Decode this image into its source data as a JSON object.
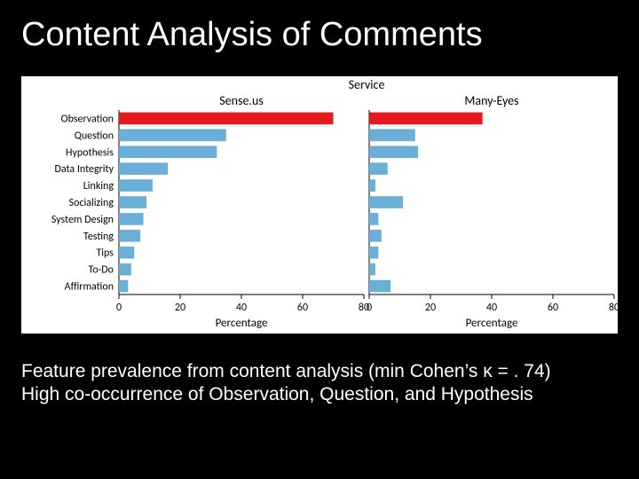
{
  "title": "Content Analysis of Comments",
  "chart": {
    "background_color": "#ffffff",
    "super_label": "Service",
    "panels_label_fontsize": 14,
    "categories": [
      "Observation",
      "Question",
      "Hypothesis",
      "Data Integrity",
      "Linking",
      "Socializing",
      "System Design",
      "Testing",
      "Tips",
      "To-Do",
      "Affirmation"
    ],
    "cat_fontsize": 12,
    "x_axis": {
      "label": "Percentage",
      "label_fontsize": 13,
      "lim": [
        0,
        80
      ],
      "ticks": [
        0,
        20,
        40,
        60,
        80
      ],
      "tick_fontsize": 12
    },
    "panels": [
      {
        "name": "Sense.us",
        "values": [
          70,
          35,
          32,
          16,
          11,
          9,
          8,
          7,
          5,
          4,
          3
        ],
        "highlighted": [
          true,
          false,
          false,
          false,
          false,
          false,
          false,
          false,
          false,
          false,
          false
        ]
      },
      {
        "name": "Many-Eyes",
        "values": [
          37,
          15,
          16,
          6,
          2,
          11,
          3,
          4,
          3,
          2,
          7
        ],
        "highlighted": [
          true,
          false,
          false,
          false,
          false,
          false,
          false,
          false,
          false,
          false,
          false
        ]
      }
    ],
    "colors": {
      "bar_normal": "#6baed6",
      "bar_highlight": "#e41a1c",
      "axis": "#000000",
      "text": "#000000"
    },
    "bar_height_ratio": 0.72
  },
  "caption": {
    "line1_a": "Feature prevalence from content analysis (min Cohen’s ",
    "kappa": "κ",
    "line1_b": " = . 74)",
    "line2": "High co-occurrence of Observation, Question, and Hypothesis"
  }
}
